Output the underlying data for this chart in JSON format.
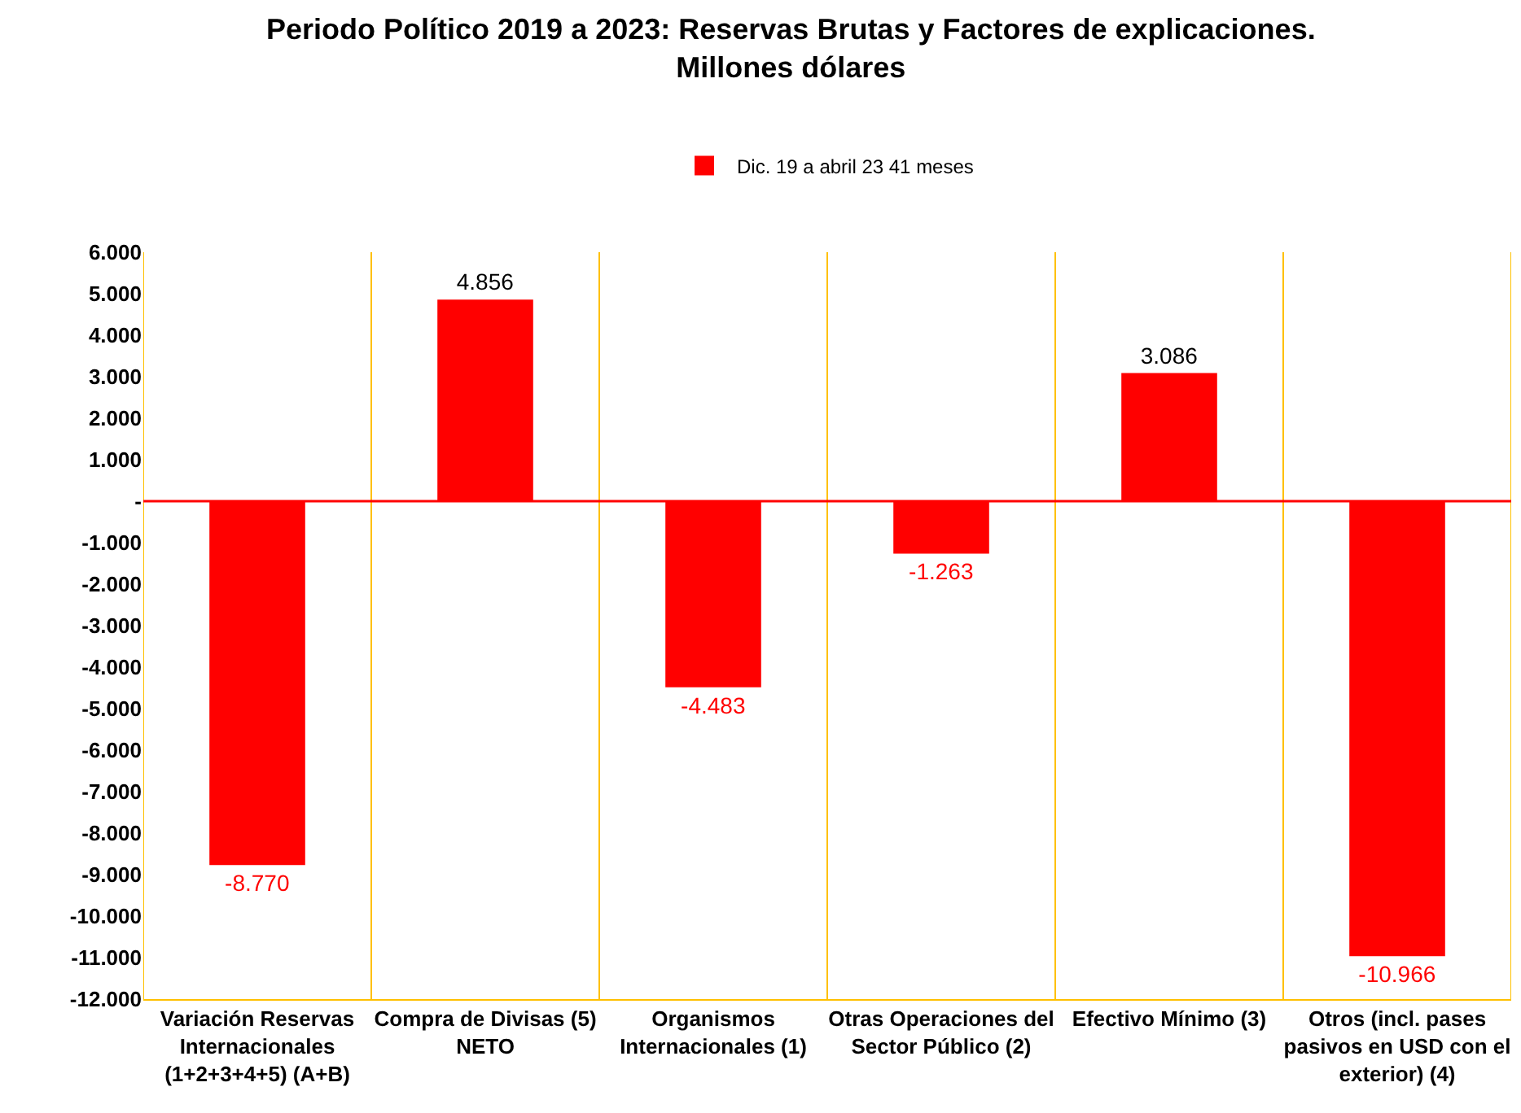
{
  "chart_data": {
    "type": "bar",
    "title": "Periodo Político 2019 a 2023: Reservas Brutas y Factores de explicaciones.\nMillones dólares",
    "categories": [
      "Variación Reservas Internacionales (1+2+3+4+5) (A+B)",
      "Compra de Divisas (5) NETO",
      "Organismos Internacionales (1)",
      "Otras Operaciones del Sector Público (2)",
      "Efectivo Mínimo (3)",
      "Otros (incl. pases pasivos en USD con el exterior) (4)"
    ],
    "series": [
      {
        "name": "Dic. 19 a abril 23 41 meses",
        "color": "#ff0000",
        "values": [
          -8770,
          4856,
          -4483,
          -1263,
          3086,
          -10966
        ],
        "value_labels": [
          "-8.770",
          "4.856",
          "-4.483",
          "-1.263",
          "3.086",
          "-10.966"
        ]
      }
    ],
    "ylim": [
      -12000,
      6000
    ],
    "yticks": [
      {
        "value": 6000,
        "label": "6.000"
      },
      {
        "value": 5000,
        "label": "5.000"
      },
      {
        "value": 4000,
        "label": "4.000"
      },
      {
        "value": 3000,
        "label": "3.000"
      },
      {
        "value": 2000,
        "label": "2.000"
      },
      {
        "value": 1000,
        "label": "1.000"
      },
      {
        "value": 0,
        "label": "-"
      },
      {
        "value": -1000,
        "label": "-1.000"
      },
      {
        "value": -2000,
        "label": "-2.000"
      },
      {
        "value": -3000,
        "label": "-3.000"
      },
      {
        "value": -4000,
        "label": "-4.000"
      },
      {
        "value": -5000,
        "label": "-5.000"
      },
      {
        "value": -6000,
        "label": "-6.000"
      },
      {
        "value": -7000,
        "label": "-7.000"
      },
      {
        "value": -8000,
        "label": "-8.000"
      },
      {
        "value": -9000,
        "label": "-9.000"
      },
      {
        "value": -10000,
        "label": "-10.000"
      },
      {
        "value": -11000,
        "label": "-11.000"
      },
      {
        "value": -12000,
        "label": "-12.000"
      }
    ],
    "ref_lines": [
      {
        "axis": "y",
        "value": 0,
        "color": "#ff0000"
      }
    ],
    "grid": "x",
    "legend": "top"
  }
}
